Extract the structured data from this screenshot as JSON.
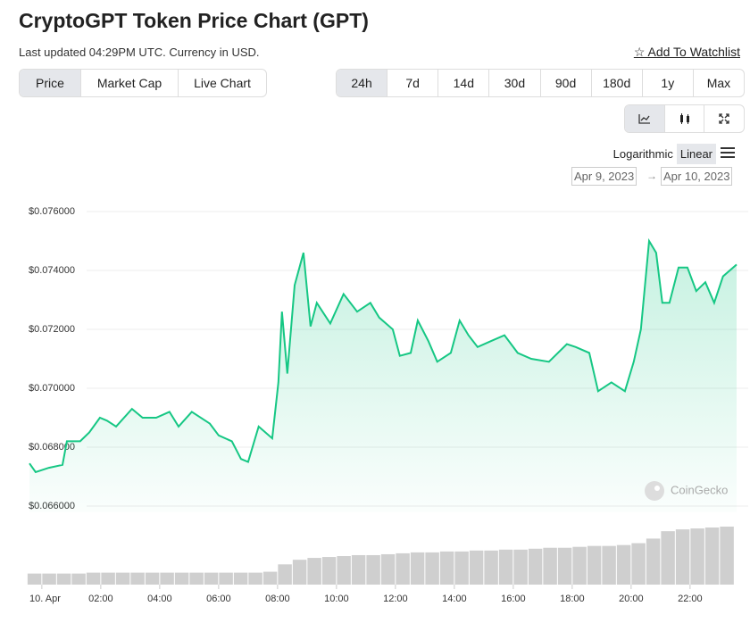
{
  "header": {
    "title": "CryptoGPT Token Price Chart (GPT)",
    "subtitle": "Last updated 04:29PM UTC. Currency in USD.",
    "watchlist": "Add To Watchlist"
  },
  "tabs": [
    "Price",
    "Market Cap",
    "Live Chart"
  ],
  "active_tab": 0,
  "ranges": [
    "24h",
    "7d",
    "14d",
    "30d",
    "90d",
    "180d",
    "1y",
    "Max"
  ],
  "active_range": 0,
  "scale_options": [
    "Logarithmic",
    "Linear"
  ],
  "active_scale": 1,
  "date_from": "Apr 9, 2023",
  "date_to": "Apr 10, 2023",
  "watermark": "CoinGecko",
  "chart_data": {
    "type": "line",
    "x": [
      -0.42,
      -0.21,
      0.24,
      0.7,
      0.85,
      1.3,
      1.61,
      1.97,
      2.21,
      2.52,
      3.06,
      3.42,
      3.88,
      4.33,
      4.64,
      5.09,
      5.7,
      6.0,
      6.45,
      6.76,
      7.0,
      7.36,
      7.82,
      8.03,
      8.15,
      8.33,
      8.58,
      8.88,
      9.12,
      9.33,
      9.79,
      10.24,
      10.7,
      11.15,
      11.45,
      11.91,
      12.15,
      12.52,
      12.76,
      13.12,
      13.42,
      13.88,
      14.18,
      14.48,
      14.79,
      15.24,
      15.7,
      16.15,
      16.61,
      17.21,
      17.82,
      18.12,
      18.58,
      18.88,
      19.33,
      19.79,
      20.09,
      20.33,
      20.61,
      20.85,
      21.06,
      21.3,
      21.61,
      21.91,
      22.21,
      22.52,
      22.82,
      23.12,
      23.58
    ],
    "series": [
      {
        "color": "#16c784",
        "values": [
          0.06745,
          0.06715,
          0.0673,
          0.0674,
          0.0682,
          0.0682,
          0.0685,
          0.069,
          0.0689,
          0.0687,
          0.0693,
          0.069,
          0.069,
          0.0692,
          0.0687,
          0.0692,
          0.0688,
          0.0684,
          0.0682,
          0.0676,
          0.0675,
          0.0687,
          0.0683,
          0.0702,
          0.0726,
          0.0705,
          0.0735,
          0.0746,
          0.0721,
          0.0729,
          0.0722,
          0.0732,
          0.0726,
          0.0729,
          0.0724,
          0.072,
          0.0711,
          0.0712,
          0.0723,
          0.0716,
          0.0709,
          0.0712,
          0.0723,
          0.0718,
          0.0714,
          0.0716,
          0.0718,
          0.0712,
          0.071,
          0.0709,
          0.0715,
          0.0714,
          0.0712,
          0.0699,
          0.0702,
          0.0699,
          0.0709,
          0.072,
          0.075,
          0.0746,
          0.0729,
          0.0729,
          0.0741,
          0.0741,
          0.0733,
          0.0736,
          0.0729,
          0.0738,
          0.0742
        ]
      }
    ],
    "volume": {
      "color": "#cfcfcf",
      "x": [
        -0.25,
        0.25,
        0.75,
        1.25,
        1.75,
        2.25,
        2.75,
        3.25,
        3.75,
        4.25,
        4.75,
        5.25,
        5.75,
        6.25,
        6.75,
        7.25,
        7.75,
        8.25,
        8.75,
        9.25,
        9.75,
        10.25,
        10.75,
        11.25,
        11.75,
        12.25,
        12.75,
        13.25,
        13.75,
        14.25,
        14.75,
        15.25,
        15.75,
        16.25,
        16.75,
        17.25,
        17.75,
        18.25,
        18.75,
        19.25,
        19.75,
        20.25,
        20.75,
        21.25,
        21.75,
        22.25,
        22.75,
        23.25
      ],
      "values": [
        12,
        12,
        12,
        12,
        13,
        13,
        13,
        13,
        13,
        13,
        13,
        13,
        13,
        13,
        13,
        13,
        14,
        22,
        27,
        29,
        30,
        31,
        32,
        32,
        33,
        34,
        35,
        35,
        36,
        36,
        37,
        37,
        38,
        38,
        39,
        40,
        40,
        41,
        42,
        42,
        43,
        45,
        50,
        58,
        60,
        61,
        62,
        63
      ]
    },
    "xlim": [
      -0.42,
      23.58
    ],
    "xticks": [
      {
        "value": 0,
        "label": "10. Apr"
      },
      {
        "value": 2,
        "label": "02:00"
      },
      {
        "value": 4,
        "label": "04:00"
      },
      {
        "value": 6,
        "label": "06:00"
      },
      {
        "value": 8,
        "label": "08:00"
      },
      {
        "value": 10,
        "label": "10:00"
      },
      {
        "value": 12,
        "label": "12:00"
      },
      {
        "value": 14,
        "label": "14:00"
      },
      {
        "value": 16,
        "label": "16:00"
      },
      {
        "value": 18,
        "label": "18:00"
      },
      {
        "value": 20,
        "label": "20:00"
      },
      {
        "value": 22,
        "label": "22:00"
      }
    ],
    "ylim": [
      0.0658,
      0.0762
    ],
    "yticks": [
      {
        "value": 0.066,
        "label": "$0.066000"
      },
      {
        "value": 0.068,
        "label": "$0.068000"
      },
      {
        "value": 0.07,
        "label": "$0.070000"
      },
      {
        "value": 0.072,
        "label": "$0.072000"
      },
      {
        "value": 0.074,
        "label": "$0.074000"
      },
      {
        "value": 0.076,
        "label": "$0.076000"
      }
    ],
    "grid": true
  }
}
